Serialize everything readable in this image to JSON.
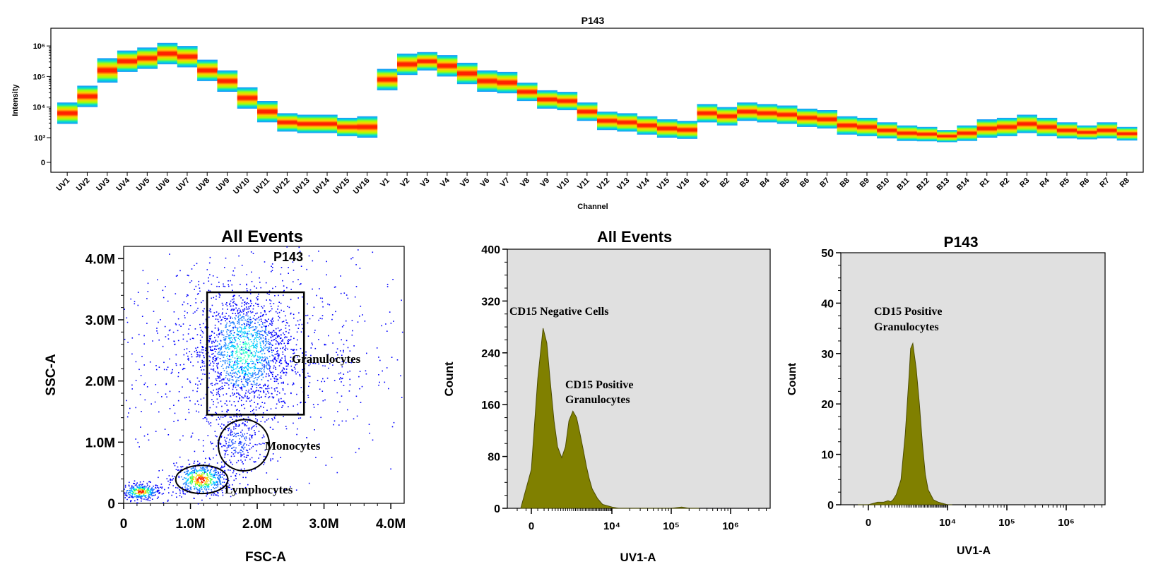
{
  "chart_data": [
    {
      "type": "heatmap",
      "title": "P143",
      "xlabel": "Channel",
      "ylabel": "Intensity",
      "yscale": "log",
      "yticks": [
        "0",
        "10³",
        "10⁴",
        "10⁵",
        "10⁶"
      ],
      "categories": [
        "UV1",
        "UV2",
        "UV3",
        "UV4",
        "UV5",
        "UV6",
        "UV7",
        "UV8",
        "UV9",
        "UV10",
        "UV11",
        "UV12",
        "UV13",
        "UV14",
        "UV15",
        "UV16",
        "V1",
        "V2",
        "V3",
        "V4",
        "V5",
        "V6",
        "V7",
        "V8",
        "V9",
        "V10",
        "V11",
        "V12",
        "V13",
        "V14",
        "V15",
        "V16",
        "B1",
        "B2",
        "B3",
        "B4",
        "B5",
        "B6",
        "B7",
        "B8",
        "B9",
        "B10",
        "B11",
        "B12",
        "B13",
        "B14",
        "R1",
        "R2",
        "R3",
        "R4",
        "R5",
        "R6",
        "R7",
        "R8"
      ],
      "median_log10": [
        3.8,
        4.35,
        5.2,
        5.5,
        5.6,
        5.75,
        5.65,
        5.2,
        4.85,
        4.3,
        3.85,
        3.5,
        3.45,
        3.45,
        3.35,
        3.35,
        4.9,
        5.4,
        5.5,
        5.35,
        5.1,
        4.85,
        4.8,
        4.5,
        4.25,
        4.2,
        3.85,
        3.55,
        3.5,
        3.4,
        3.3,
        3.2,
        3.8,
        3.7,
        3.85,
        3.8,
        3.75,
        3.65,
        3.6,
        3.4,
        3.35,
        3.2,
        3.0,
        2.95,
        2.85,
        3.0,
        3.3,
        3.35,
        3.45,
        3.35,
        3.2,
        3.1,
        3.2,
        3.0
      ],
      "spread_log10": [
        0.35,
        0.35,
        0.4,
        0.35,
        0.35,
        0.35,
        0.35,
        0.35,
        0.35,
        0.35,
        0.35,
        0.3,
        0.3,
        0.3,
        0.3,
        0.35,
        0.35,
        0.35,
        0.3,
        0.35,
        0.35,
        0.35,
        0.35,
        0.3,
        0.3,
        0.3,
        0.3,
        0.3,
        0.3,
        0.3,
        0.3,
        0.35,
        0.3,
        0.3,
        0.3,
        0.3,
        0.3,
        0.3,
        0.3,
        0.3,
        0.3,
        0.3,
        0.4,
        0.4,
        0.4,
        0.4,
        0.3,
        0.3,
        0.3,
        0.3,
        0.3,
        0.3,
        0.3,
        0.35
      ]
    },
    {
      "type": "scatter",
      "title": "All Events",
      "xlabel": "FSC-A",
      "ylabel": "SSC-A",
      "xlim": [
        0,
        4200000
      ],
      "ylim": [
        0,
        4200000
      ],
      "xticks": [
        "0",
        "1.0M",
        "2.0M",
        "3.0M",
        "4.0M"
      ],
      "yticks": [
        "0",
        "1.0M",
        "2.0M",
        "3.0M",
        "4.0M"
      ],
      "clusters": [
        {
          "label": "",
          "center": [
            250000,
            200000
          ],
          "spread": [
            150000,
            70000
          ],
          "n": 320
        },
        {
          "label": "Lymphocytes",
          "center": [
            1150000,
            400000
          ],
          "spread": [
            220000,
            140000
          ],
          "n": 520
        },
        {
          "label": "Monocytes",
          "center": [
            1700000,
            1000000
          ],
          "spread": [
            230000,
            280000
          ],
          "n": 300
        },
        {
          "label": "Granulocytes",
          "center": [
            1800000,
            2500000
          ],
          "spread": [
            350000,
            500000
          ],
          "n": 1500
        },
        {
          "label": "",
          "center": [
            1900000,
            2400000
          ],
          "spread": [
            1200000,
            900000
          ],
          "n": 900
        }
      ],
      "gates": [
        {
          "name": "P143",
          "shape": "rectangle",
          "x": [
            1250000,
            2700000
          ],
          "y": [
            1450000,
            3450000
          ],
          "label": "P143"
        },
        {
          "name": "Granulocytes",
          "label": "Granulocytes"
        },
        {
          "name": "Monocytes",
          "shape": "ellipse",
          "center": [
            1800000,
            950000
          ],
          "r": [
            380000,
            420000
          ],
          "label": "Monocytes"
        },
        {
          "name": "Lymphocytes",
          "shape": "ellipse",
          "center": [
            1170000,
            390000
          ],
          "r": [
            390000,
            230000
          ],
          "label": "Lymphocytes"
        }
      ]
    },
    {
      "type": "area",
      "title": "All Events",
      "xlabel": "UV1-A",
      "ylabel": "Count",
      "xscale": "biexponential",
      "ylim": [
        0,
        400
      ],
      "yticks": [
        "0",
        "80",
        "160",
        "240",
        "320",
        "400"
      ],
      "xticks": [
        {
          "v": 0,
          "label": "0"
        },
        {
          "v": 10000,
          "label": "10⁴"
        },
        {
          "v": 100000,
          "label": "10⁵"
        },
        {
          "v": 1000000,
          "label": "10⁶"
        }
      ],
      "x": [
        -300,
        0,
        100,
        300,
        500,
        700,
        1000,
        1300,
        1700,
        2100,
        2500,
        3000,
        3500,
        4000,
        4500,
        5000,
        5500,
        6000,
        7000,
        8000,
        10000,
        13000,
        20000,
        100000,
        150000,
        200000,
        300000
      ],
      "values": [
        0,
        60,
        200,
        278,
        255,
        200,
        135,
        95,
        78,
        95,
        135,
        150,
        140,
        115,
        90,
        65,
        45,
        30,
        15,
        6,
        2,
        0,
        0,
        0,
        2,
        0,
        0
      ],
      "annotations": [
        "CD15 Negative Cells",
        "CD15 Positive",
        "Granulocytes"
      ]
    },
    {
      "type": "area",
      "title": "P143",
      "xlabel": "UV1-A",
      "ylabel": "Count",
      "xscale": "biexponential",
      "ylim": [
        0,
        50
      ],
      "yticks": [
        "0",
        "10",
        "20",
        "30",
        "40",
        "50"
      ],
      "xticks": [
        {
          "v": 0,
          "label": "0"
        },
        {
          "v": 10000,
          "label": "10⁴"
        },
        {
          "v": 100000,
          "label": "10⁵"
        },
        {
          "v": 1000000,
          "label": "10⁶"
        }
      ],
      "x": [
        -300,
        -100,
        0,
        200,
        500,
        800,
        1000,
        1200,
        1500,
        2000,
        2500,
        3000,
        3200,
        3500,
        4000,
        4500,
        5000,
        5500,
        6000,
        7000,
        8000,
        10000,
        12000
      ],
      "values": [
        0,
        0,
        0,
        0.5,
        0.5,
        0.8,
        0.6,
        1,
        2,
        5,
        14,
        26,
        31,
        32,
        27,
        20,
        12,
        6,
        3,
        1,
        0.5,
        0,
        0
      ],
      "annotations": [
        "CD15 Positive",
        "Granulocytes"
      ]
    }
  ]
}
